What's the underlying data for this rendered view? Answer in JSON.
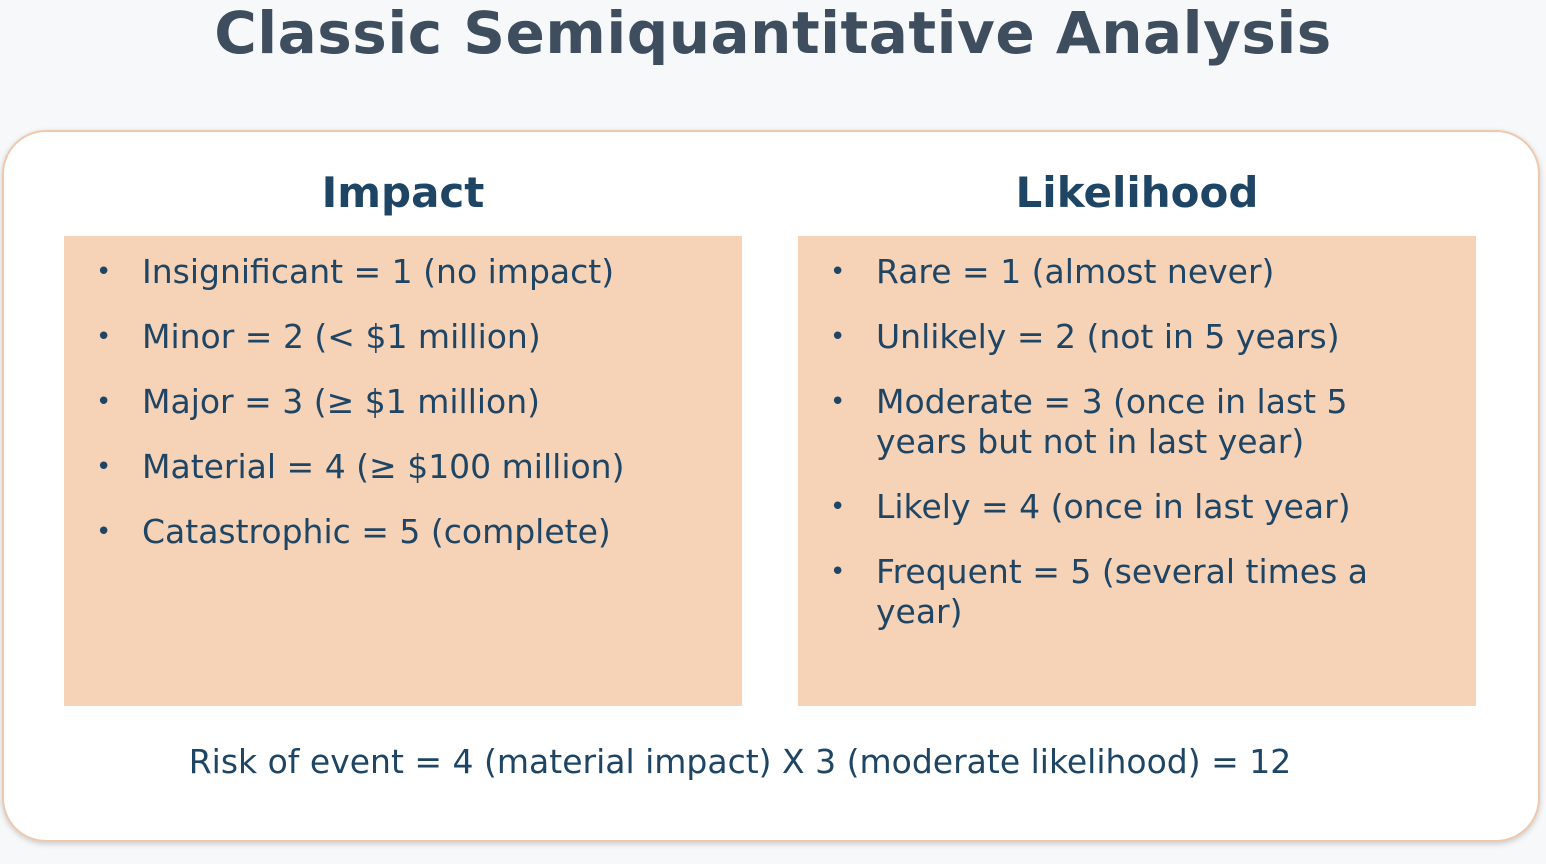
{
  "title": "Classic Semiquantitative Analysis",
  "impact": {
    "heading": "Impact",
    "items": [
      "Insignificant = 1 (no impact)",
      "Minor = 2 (< $1 million)",
      "Major = 3 (≥ $1 million)",
      "Material = 4 (≥ $100 million)",
      "Catastrophic = 5 (complete)"
    ]
  },
  "likelihood": {
    "heading": "Likelihood",
    "items": [
      "Rare = 1 (almost never)",
      "Unlikely = 2 (not in 5 years)",
      "Moderate = 3 (once in last 5 years but not in last year)",
      "Likely = 4 (once in last year)",
      "Frequent = 5 (several times a year)"
    ]
  },
  "formula": "Risk of event = 4 (material impact) X 3 (moderate likelihood) = 12",
  "colors": {
    "title": "#3e4e5e",
    "text": "#1f4565",
    "panel": "#f6d2b7",
    "card_border": "#efc9ad"
  }
}
